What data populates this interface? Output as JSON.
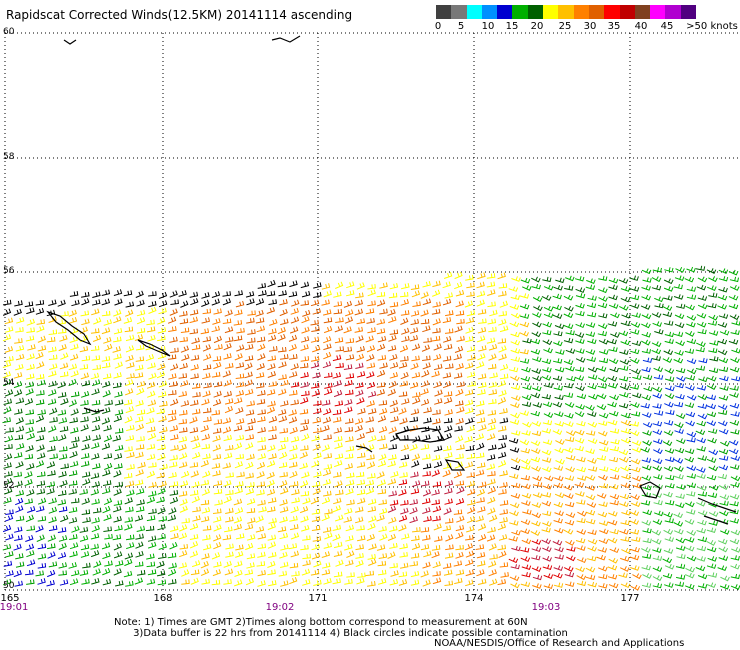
{
  "title": "Rapidscat Corrected Winds(12.5KM) 20141114 ascending",
  "legend": {
    "colors": [
      "#404040",
      "#787878",
      "#00ffff",
      "#0090ff",
      "#0000d0",
      "#00b000",
      "#006000",
      "#ffff00",
      "#ffc000",
      "#ff8000",
      "#e06000",
      "#ff0000",
      "#c00000",
      "#804020",
      "#ff00ff",
      "#b000d0",
      "#500080"
    ],
    "labels": [
      "0",
      "5",
      "10",
      "15",
      "20",
      "25",
      "30",
      "35",
      "40",
      "45",
      ">50 knots"
    ]
  },
  "map": {
    "lat_labels": [
      "60",
      "58",
      "56",
      "54",
      "52",
      "50"
    ],
    "lon_labels": [
      "165",
      "168",
      "171",
      "174",
      "177"
    ],
    "time_labels": [
      "19:01",
      "19:02",
      "19:03"
    ]
  },
  "notes": {
    "line1": "Note: 1) Times are GMT 2)Times along bottom correspond to measurement at 60N",
    "line2": "      3)Data buffer is 22 hrs from 20141114 4) Black circles indicate possible contamination"
  },
  "credit": "NOAA/NESDIS/Office of Research and Applications"
}
